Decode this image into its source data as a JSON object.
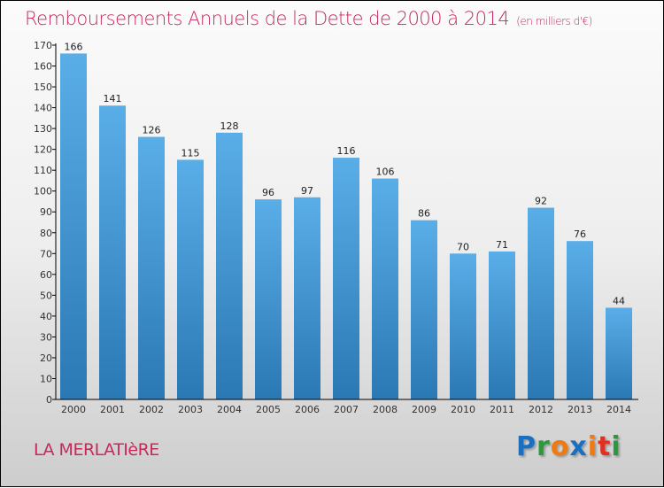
{
  "chart_data": {
    "type": "bar",
    "title": "Remboursements Annuels de la Dette de 2000 à 2014",
    "unit": "(en milliers d'€)",
    "categories": [
      "2000",
      "2001",
      "2002",
      "2003",
      "2004",
      "2005",
      "2006",
      "2007",
      "2008",
      "2009",
      "2010",
      "2011",
      "2012",
      "2013",
      "2014"
    ],
    "values": [
      166,
      141,
      126,
      115,
      128,
      96,
      97,
      116,
      106,
      86,
      70,
      71,
      92,
      76,
      44
    ],
    "ylim": [
      0,
      170
    ],
    "yticks": [
      0,
      10,
      20,
      30,
      40,
      50,
      60,
      70,
      80,
      90,
      100,
      110,
      120,
      130,
      140,
      150,
      160,
      170
    ],
    "xlabel": "",
    "ylabel": "",
    "bar_color": "#5aaee8",
    "bar_color_bottom": "#2a78b4"
  },
  "commune": "LA MERLATIèRE",
  "logo": {
    "letters": [
      "P",
      "r",
      "o",
      "x",
      "i",
      "t",
      "i"
    ],
    "colors": [
      "#1a6fc0",
      "#2a9a3a",
      "#f07a10",
      "#1a6fc0",
      "#f07a10",
      "#e03020",
      "#2a9a3a"
    ]
  },
  "title_color": "#c8285a"
}
